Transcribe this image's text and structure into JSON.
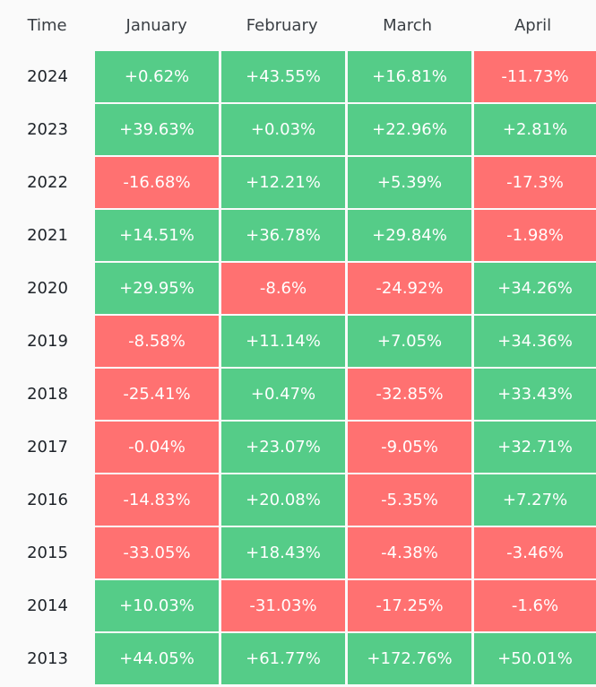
{
  "colors": {
    "positive": "#55cc88",
    "negative": "#ff7171",
    "background": "#fafafa"
  },
  "header": {
    "time_label": "Time",
    "months": [
      "January",
      "February",
      "March",
      "April"
    ]
  },
  "rows": [
    {
      "year": "2024",
      "values": [
        "+0.62%",
        "+43.55%",
        "+16.81%",
        "-11.73%"
      ]
    },
    {
      "year": "2023",
      "values": [
        "+39.63%",
        "+0.03%",
        "+22.96%",
        "+2.81%"
      ]
    },
    {
      "year": "2022",
      "values": [
        "-16.68%",
        "+12.21%",
        "+5.39%",
        "-17.3%"
      ]
    },
    {
      "year": "2021",
      "values": [
        "+14.51%",
        "+36.78%",
        "+29.84%",
        "-1.98%"
      ]
    },
    {
      "year": "2020",
      "values": [
        "+29.95%",
        "-8.6%",
        "-24.92%",
        "+34.26%"
      ]
    },
    {
      "year": "2019",
      "values": [
        "-8.58%",
        "+11.14%",
        "+7.05%",
        "+34.36%"
      ]
    },
    {
      "year": "2018",
      "values": [
        "-25.41%",
        "+0.47%",
        "-32.85%",
        "+33.43%"
      ]
    },
    {
      "year": "2017",
      "values": [
        "-0.04%",
        "+23.07%",
        "-9.05%",
        "+32.71%"
      ]
    },
    {
      "year": "2016",
      "values": [
        "-14.83%",
        "+20.08%",
        "-5.35%",
        "+7.27%"
      ]
    },
    {
      "year": "2015",
      "values": [
        "-33.05%",
        "+18.43%",
        "-4.38%",
        "-3.46%"
      ]
    },
    {
      "year": "2014",
      "values": [
        "+10.03%",
        "-31.03%",
        "-17.25%",
        "-1.6%"
      ]
    },
    {
      "year": "2013",
      "values": [
        "+44.05%",
        "+61.77%",
        "+172.76%",
        "+50.01%"
      ]
    }
  ]
}
